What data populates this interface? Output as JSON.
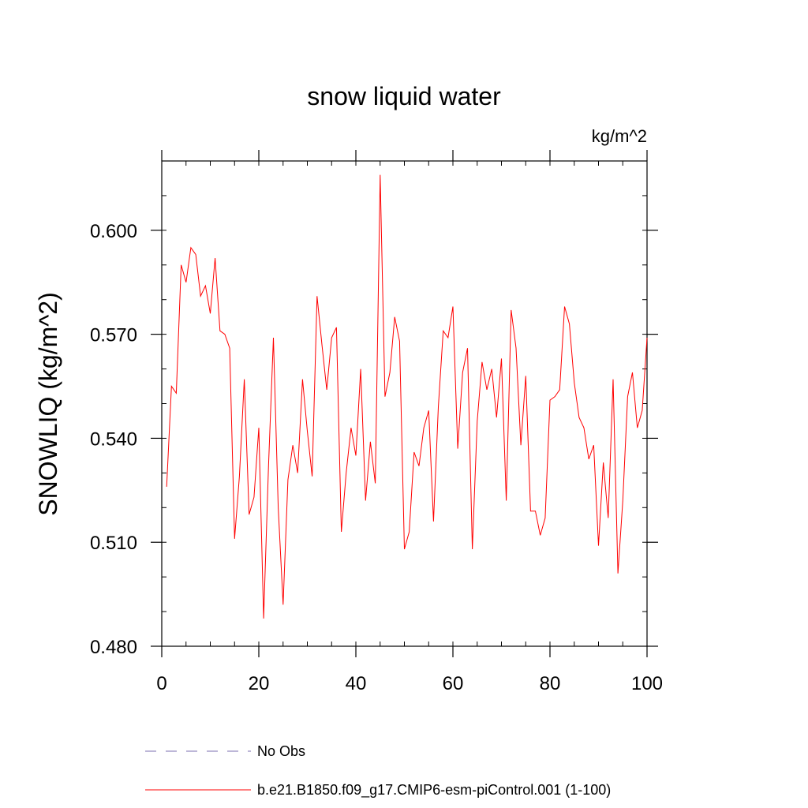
{
  "chart_data": {
    "type": "line",
    "title": "snow liquid water",
    "units_label": "kg/m^2",
    "xlabel": "",
    "ylabel": "SNOWLIQ  (kg/m^2)",
    "xlim": [
      0,
      100
    ],
    "ylim": [
      0.48,
      0.62
    ],
    "x_ticks": [
      0,
      20,
      40,
      60,
      80,
      100
    ],
    "x_tick_labels": [
      "0",
      "20",
      "40",
      "60",
      "80",
      "100"
    ],
    "y_ticks": [
      0.48,
      0.51,
      0.54,
      0.57,
      0.6
    ],
    "y_tick_labels": [
      "0.480",
      "0.510",
      "0.540",
      "0.570",
      "0.600"
    ],
    "grid": false,
    "legend_position": "bottom",
    "legend": [
      {
        "label": "No Obs",
        "style": "dashed",
        "color": "#7b6fb0"
      },
      {
        "label": "b.e21.B1850.f09_g17.CMIP6-esm-piControl.001 (1-100)",
        "style": "solid",
        "color": "#ff0000"
      }
    ],
    "series": [
      {
        "name": "b.e21.B1850.f09_g17.CMIP6-esm-piControl.001 (1-100)",
        "color": "#ff0000",
        "x": [
          1,
          2,
          3,
          4,
          5,
          6,
          7,
          8,
          9,
          10,
          11,
          12,
          13,
          14,
          15,
          16,
          17,
          18,
          19,
          20,
          21,
          22,
          23,
          24,
          25,
          26,
          27,
          28,
          29,
          30,
          31,
          32,
          33,
          34,
          35,
          36,
          37,
          38,
          39,
          40,
          41,
          42,
          43,
          44,
          45,
          46,
          47,
          48,
          49,
          50,
          51,
          52,
          53,
          54,
          55,
          56,
          57,
          58,
          59,
          60,
          61,
          62,
          63,
          64,
          65,
          66,
          67,
          68,
          69,
          70,
          71,
          72,
          73,
          74,
          75,
          76,
          77,
          78,
          79,
          80,
          81,
          82,
          83,
          84,
          85,
          86,
          87,
          88,
          89,
          90,
          91,
          92,
          93,
          94,
          95,
          96,
          97,
          98,
          99,
          100
        ],
        "values": [
          0.526,
          0.555,
          0.553,
          0.59,
          0.585,
          0.595,
          0.593,
          0.581,
          0.584,
          0.576,
          0.592,
          0.571,
          0.57,
          0.566,
          0.511,
          0.529,
          0.557,
          0.518,
          0.523,
          0.543,
          0.488,
          0.532,
          0.569,
          0.52,
          0.492,
          0.528,
          0.538,
          0.53,
          0.557,
          0.542,
          0.529,
          0.581,
          0.567,
          0.554,
          0.569,
          0.572,
          0.513,
          0.53,
          0.543,
          0.535,
          0.56,
          0.522,
          0.539,
          0.527,
          0.616,
          0.552,
          0.559,
          0.575,
          0.568,
          0.508,
          0.513,
          0.536,
          0.532,
          0.543,
          0.548,
          0.516,
          0.549,
          0.571,
          0.569,
          0.578,
          0.537,
          0.559,
          0.566,
          0.508,
          0.545,
          0.562,
          0.554,
          0.56,
          0.546,
          0.563,
          0.522,
          0.577,
          0.566,
          0.538,
          0.558,
          0.519,
          0.519,
          0.512,
          0.517,
          0.551,
          0.552,
          0.554,
          0.578,
          0.573,
          0.556,
          0.546,
          0.543,
          0.534,
          0.538,
          0.509,
          0.533,
          0.517,
          0.557,
          0.501,
          0.522,
          0.552,
          0.559,
          0.543,
          0.548,
          0.569
        ]
      }
    ]
  }
}
